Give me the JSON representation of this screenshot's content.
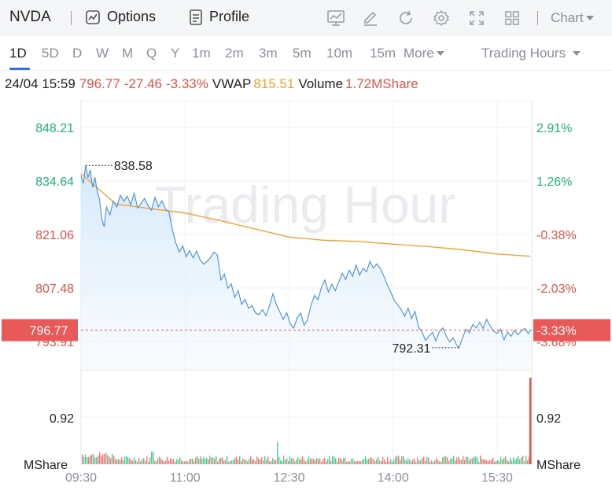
{
  "header": {
    "ticker": "NVDA",
    "options_label": "Options",
    "profile_label": "Profile",
    "chart_label": "Chart",
    "tools": [
      "indicator-icon",
      "draw-icon",
      "refresh-icon",
      "settings-icon",
      "fullscreen-icon",
      "layout-icon"
    ]
  },
  "periods": {
    "items": [
      "1D",
      "5D",
      "D",
      "W",
      "M",
      "Q",
      "Y",
      "1m",
      "2m",
      "3m",
      "5m",
      "10m",
      "15m"
    ],
    "active": "1D",
    "more_label": "More",
    "hours_label": "Trading Hours"
  },
  "info": {
    "datetime": "24/04 15:59",
    "price": "796.77",
    "change": "-27.46",
    "change_pct": "-3.33%",
    "vwap_label": "VWAP",
    "vwap": "815.51",
    "volume_label": "Volume",
    "volume": "1.72MShare"
  },
  "watermark": "Trading Hour",
  "colors": {
    "up": "#22b573",
    "down": "#e5534b",
    "price_line": "#4a90d9",
    "vwap_line": "#f0a030",
    "current_badge": "#e85a5a"
  },
  "chart_data": {
    "type": "line",
    "x_ticks": [
      "09:30",
      "11:00",
      "12:30",
      "14:00",
      "15:30"
    ],
    "y_ticks_left": [
      "848.21",
      "834.64",
      "821.06",
      "807.48",
      "793.91"
    ],
    "y_ticks_right": [
      "2.91%",
      "1.26%",
      "-0.38%",
      "-2.03%",
      "-3.68%"
    ],
    "ylim": [
      786.7,
      855.0
    ],
    "prev_close": 824.23,
    "current_price": 796.77,
    "current_price_label": "796.77",
    "current_pct_label": "-3.33%",
    "high_label": "838.58",
    "high_value": 838.58,
    "high_time": "09:34",
    "low_label": "792.31",
    "low_value": 792.31,
    "low_time": "14:57",
    "volume_tick_left": "0.92",
    "volume_tick_right": "0.92",
    "volume_unit_left": "MShare",
    "volume_unit_right": "MShare",
    "price_series": {
      "times": [
        "09:30",
        "09:32",
        "09:34",
        "09:36",
        "09:38",
        "09:40",
        "09:42",
        "09:44",
        "09:46",
        "09:48",
        "09:50",
        "09:52",
        "09:55",
        "09:58",
        "10:01",
        "10:04",
        "10:07",
        "10:10",
        "10:13",
        "10:16",
        "10:19",
        "10:22",
        "10:25",
        "10:28",
        "10:31",
        "10:34",
        "10:37",
        "10:40",
        "10:43",
        "10:46",
        "10:49",
        "10:52",
        "10:55",
        "10:58",
        "11:01",
        "11:04",
        "11:07",
        "11:10",
        "11:13",
        "11:16",
        "11:19",
        "11:22",
        "11:25",
        "11:28",
        "11:31",
        "11:34",
        "11:37",
        "11:40",
        "11:43",
        "11:46",
        "11:49",
        "11:52",
        "11:55",
        "11:58",
        "12:01",
        "12:04",
        "12:07",
        "12:10",
        "12:13",
        "12:16",
        "12:19",
        "12:22",
        "12:25",
        "12:28",
        "12:31",
        "12:34",
        "12:37",
        "12:40",
        "12:43",
        "12:46",
        "12:49",
        "12:52",
        "12:55",
        "12:58",
        "13:01",
        "13:04",
        "13:07",
        "13:10",
        "13:13",
        "13:16",
        "13:19",
        "13:22",
        "13:25",
        "13:28",
        "13:31",
        "13:34",
        "13:37",
        "13:40",
        "13:43",
        "13:46",
        "13:49",
        "13:52",
        "13:55",
        "13:58",
        "14:01",
        "14:04",
        "14:07",
        "14:10",
        "14:13",
        "14:16",
        "14:19",
        "14:22",
        "14:25",
        "14:28",
        "14:31",
        "14:34",
        "14:37",
        "14:40",
        "14:43",
        "14:46",
        "14:49",
        "14:52",
        "14:55",
        "14:57",
        "15:00",
        "15:03",
        "15:06",
        "15:09",
        "15:12",
        "15:15",
        "15:18",
        "15:21",
        "15:24",
        "15:27",
        "15:30",
        "15:33",
        "15:36",
        "15:39",
        "15:42",
        "15:45",
        "15:48",
        "15:51",
        "15:54",
        "15:57",
        "15:59"
      ],
      "values": [
        836.0,
        834.0,
        838.58,
        835.5,
        837.4,
        833.0,
        835.6,
        832.0,
        830.0,
        825.0,
        823.0,
        828.0,
        826.0,
        829.5,
        828.0,
        831.0,
        829.5,
        830.8,
        828.6,
        831.5,
        827.8,
        829.0,
        830.2,
        828.4,
        827.2,
        830.5,
        828.1,
        829.6,
        827.5,
        826.8,
        822.3,
        818.9,
        816.6,
        818.2,
        815.4,
        817.0,
        815.1,
        816.9,
        814.7,
        813.5,
        814.2,
        815.2,
        816.6,
        815.8,
        809.5,
        811.0,
        807.4,
        808.5,
        805.1,
        806.8,
        803.3,
        804.6,
        802.3,
        803.0,
        801.1,
        800.7,
        802.0,
        800.4,
        802.9,
        806.0,
        803.3,
        801.4,
        799.5,
        801.2,
        798.4,
        797.3,
        799.8,
        801.1,
        798.0,
        799.5,
        803.1,
        805.6,
        804.5,
        807.6,
        809.5,
        806.5,
        808.4,
        806.8,
        809.0,
        811.2,
        809.6,
        812.0,
        810.4,
        813.3,
        810.7,
        812.5,
        811.6,
        814.2,
        812.5,
        813.6,
        812.4,
        810.5,
        808.3,
        806.4,
        804.3,
        803.2,
        802.0,
        800.3,
        802.4,
        799.7,
        801.5,
        797.5,
        796.4,
        794.2,
        795.2,
        796.2,
        794.0,
        796.4,
        797.3,
        795.2,
        793.8,
        794.8,
        793.0,
        792.31,
        794.7,
        797.0,
        796.1,
        798.2,
        797.3,
        798.8,
        797.2,
        799.5,
        797.8,
        796.5,
        795.9,
        797.0,
        794.3,
        796.3,
        795.2,
        796.7,
        795.6,
        796.6,
        797.2,
        795.9,
        796.77
      ]
    },
    "vwap_series": {
      "times": [
        "09:30",
        "10:00",
        "10:30",
        "11:00",
        "11:30",
        "12:00",
        "12:30",
        "13:00",
        "13:30",
        "14:00",
        "14:30",
        "15:00",
        "15:30",
        "15:59"
      ],
      "values": [
        836.5,
        828.8,
        827.6,
        826.5,
        824.6,
        822.5,
        820.4,
        819.6,
        819.3,
        818.6,
        818.0,
        817.2,
        816.1,
        815.51
      ]
    }
  }
}
